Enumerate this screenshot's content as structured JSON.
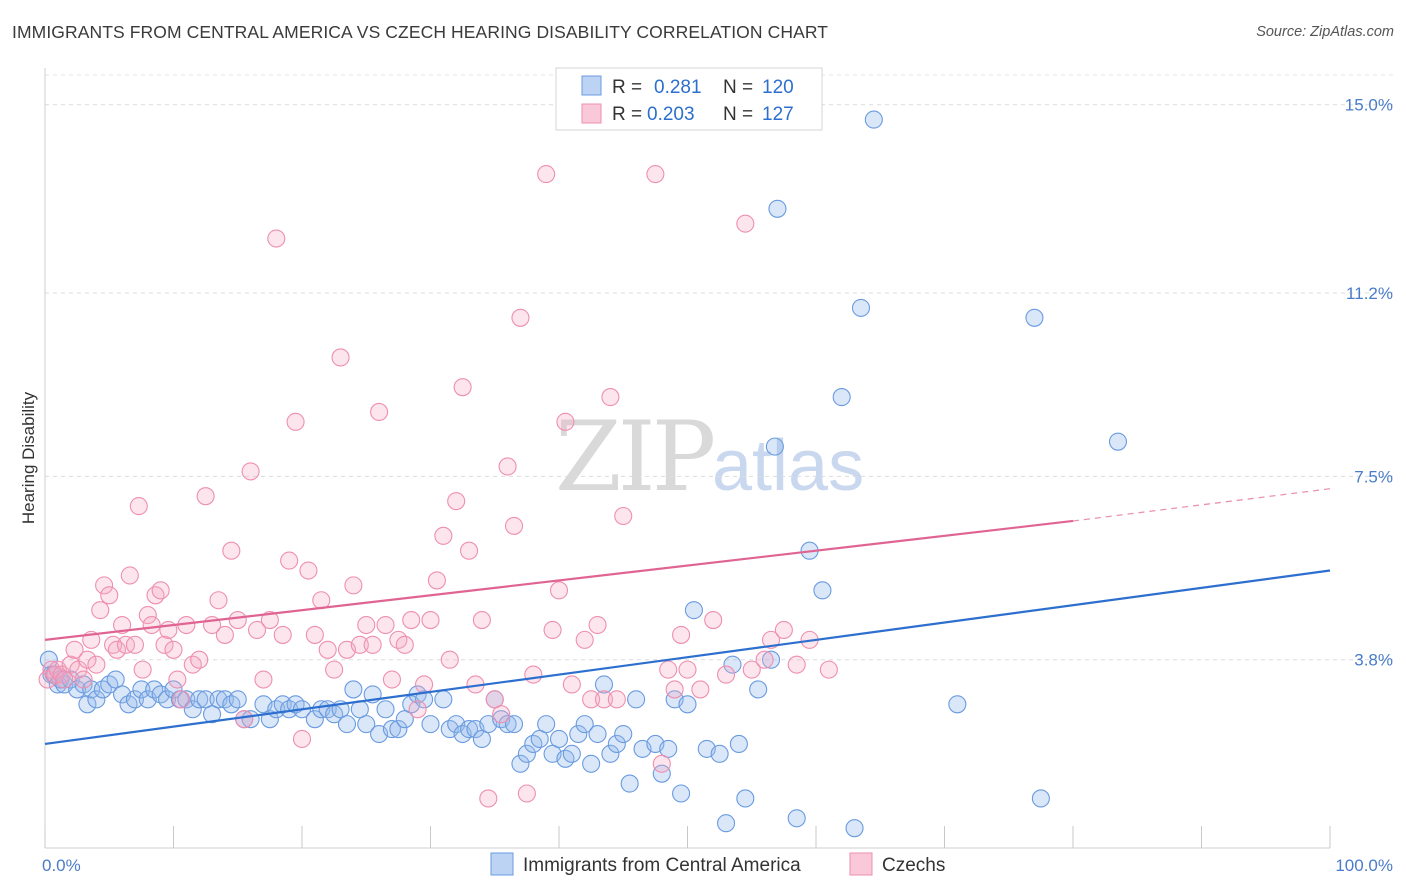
{
  "title": "IMMIGRANTS FROM CENTRAL AMERICA VS CZECH HEARING DISABILITY CORRELATION CHART",
  "source": "Source: ZipAtlas.com",
  "watermark": {
    "zip": "ZIP",
    "atlas": "atlas"
  },
  "colors": {
    "blue": "#6a9be0",
    "blue_line": "#2d6fcf",
    "pink": "#ee8fb0",
    "pink_line": "#e06492",
    "tick": "#4a7cc9"
  },
  "legend": {
    "r_label": "R =",
    "n_label": "N =",
    "rows": [
      {
        "r": "0.281",
        "n": "120"
      },
      {
        "r": "0.203",
        "n": "127"
      }
    ]
  },
  "bottom_legend": [
    "Immigrants from Central America",
    "Czechs"
  ],
  "chart_data": {
    "type": "scatter",
    "xlabel": "",
    "ylabel": "Hearing Disability",
    "xlim": [
      0,
      100
    ],
    "ylim": [
      0,
      15.6
    ],
    "x_tick_labels": [
      "0.0%",
      "100.0%"
    ],
    "y_ticks": [
      3.8,
      7.5,
      11.2,
      15.0
    ],
    "y_tick_labels": [
      "3.8%",
      "7.5%",
      "11.2%",
      "15.0%"
    ],
    "grid": true,
    "series": [
      {
        "name": "Immigrants from Central America",
        "color": "#6a9be0",
        "trend": {
          "x": [
            0,
            100
          ],
          "y": [
            2.1,
            5.6
          ]
        },
        "points": [
          [
            0.3,
            3.8
          ],
          [
            0.5,
            3.5
          ],
          [
            0.7,
            3.5
          ],
          [
            1.0,
            3.3
          ],
          [
            1.2,
            3.4
          ],
          [
            1.5,
            3.3
          ],
          [
            2.0,
            3.4
          ],
          [
            2.5,
            3.2
          ],
          [
            3.0,
            3.3
          ],
          [
            3.3,
            2.9
          ],
          [
            3.6,
            3.2
          ],
          [
            4.0,
            3.0
          ],
          [
            4.5,
            3.2
          ],
          [
            5.0,
            3.3
          ],
          [
            5.5,
            3.4
          ],
          [
            6.0,
            3.1
          ],
          [
            6.5,
            2.9
          ],
          [
            7.0,
            3.0
          ],
          [
            7.5,
            3.2
          ],
          [
            8.0,
            3.0
          ],
          [
            8.5,
            3.2
          ],
          [
            9.0,
            3.1
          ],
          [
            9.5,
            3.0
          ],
          [
            10.0,
            3.2
          ],
          [
            10.5,
            3.0
          ],
          [
            11.0,
            3.0
          ],
          [
            11.5,
            2.8
          ],
          [
            12.0,
            3.0
          ],
          [
            12.5,
            3.0
          ],
          [
            13.0,
            2.7
          ],
          [
            13.5,
            3.0
          ],
          [
            14.0,
            3.0
          ],
          [
            14.5,
            2.9
          ],
          [
            15.0,
            3.0
          ],
          [
            15.5,
            2.6
          ],
          [
            16.0,
            2.6
          ],
          [
            17.0,
            2.9
          ],
          [
            17.5,
            2.6
          ],
          [
            18.0,
            2.8
          ],
          [
            18.5,
            2.9
          ],
          [
            19.0,
            2.8
          ],
          [
            19.5,
            2.9
          ],
          [
            20.0,
            2.8
          ],
          [
            21.0,
            2.6
          ],
          [
            21.5,
            2.8
          ],
          [
            22.0,
            2.8
          ],
          [
            22.5,
            2.7
          ],
          [
            23.0,
            2.8
          ],
          [
            23.5,
            2.5
          ],
          [
            24.0,
            3.2
          ],
          [
            24.5,
            2.8
          ],
          [
            25.0,
            2.5
          ],
          [
            25.5,
            3.1
          ],
          [
            26.0,
            2.3
          ],
          [
            26.5,
            2.8
          ],
          [
            27.0,
            2.4
          ],
          [
            27.5,
            2.4
          ],
          [
            28.0,
            2.6
          ],
          [
            28.5,
            2.9
          ],
          [
            29.0,
            3.1
          ],
          [
            29.5,
            3.0
          ],
          [
            30.0,
            2.5
          ],
          [
            31.0,
            3.0
          ],
          [
            31.5,
            2.4
          ],
          [
            32.0,
            2.5
          ],
          [
            32.5,
            2.3
          ],
          [
            33.0,
            2.4
          ],
          [
            33.5,
            2.4
          ],
          [
            34.0,
            2.2
          ],
          [
            34.5,
            2.5
          ],
          [
            35.0,
            3.0
          ],
          [
            35.5,
            2.6
          ],
          [
            36.0,
            2.5
          ],
          [
            36.5,
            2.5
          ],
          [
            37.0,
            1.7
          ],
          [
            37.5,
            1.9
          ],
          [
            38.0,
            2.1
          ],
          [
            38.5,
            2.2
          ],
          [
            39.0,
            2.5
          ],
          [
            39.5,
            1.9
          ],
          [
            40.0,
            2.2
          ],
          [
            40.5,
            1.8
          ],
          [
            41.0,
            1.9
          ],
          [
            41.5,
            2.3
          ],
          [
            42.0,
            2.5
          ],
          [
            42.5,
            1.7
          ],
          [
            43.0,
            2.3
          ],
          [
            43.5,
            3.3
          ],
          [
            44.0,
            1.9
          ],
          [
            44.5,
            2.1
          ],
          [
            45.0,
            2.3
          ],
          [
            45.5,
            1.3
          ],
          [
            46.0,
            3.0
          ],
          [
            46.5,
            2.0
          ],
          [
            47.5,
            2.1
          ],
          [
            48.0,
            1.5
          ],
          [
            48.5,
            2.0
          ],
          [
            49.0,
            3.0
          ],
          [
            49.5,
            1.1
          ],
          [
            50.0,
            2.9
          ],
          [
            50.5,
            4.8
          ],
          [
            51.5,
            2.0
          ],
          [
            52.5,
            1.9
          ],
          [
            53.0,
            0.5
          ],
          [
            53.5,
            3.7
          ],
          [
            54.0,
            2.1
          ],
          [
            54.5,
            1.0
          ],
          [
            55.5,
            3.2
          ],
          [
            56.5,
            3.8
          ],
          [
            56.8,
            8.1
          ],
          [
            58.5,
            0.6
          ],
          [
            57.0,
            12.9
          ],
          [
            59.5,
            6.0
          ],
          [
            60.5,
            5.2
          ],
          [
            62.0,
            9.1
          ],
          [
            63.0,
            0.4
          ],
          [
            63.5,
            10.9
          ],
          [
            64.5,
            14.7
          ],
          [
            71.0,
            2.9
          ],
          [
            77.0,
            10.7
          ],
          [
            77.5,
            1.0
          ],
          [
            83.5,
            8.2
          ]
        ]
      },
      {
        "name": "Czechs",
        "color": "#ee8fb0",
        "trend": {
          "x": [
            0,
            80
          ],
          "y": [
            4.2,
            6.6
          ]
        },
        "trend_dashed": {
          "x": [
            80,
            100
          ],
          "y": [
            6.6,
            7.25
          ]
        },
        "points": [
          [
            0.2,
            3.4
          ],
          [
            0.5,
            3.6
          ],
          [
            0.8,
            3.5
          ],
          [
            1.0,
            3.6
          ],
          [
            1.3,
            3.5
          ],
          [
            1.5,
            3.4
          ],
          [
            2.0,
            3.7
          ],
          [
            2.3,
            4.0
          ],
          [
            2.6,
            3.6
          ],
          [
            3.0,
            3.4
          ],
          [
            3.3,
            3.8
          ],
          [
            3.6,
            4.2
          ],
          [
            4.0,
            3.7
          ],
          [
            4.3,
            4.8
          ],
          [
            4.6,
            5.3
          ],
          [
            5.0,
            5.1
          ],
          [
            5.3,
            4.1
          ],
          [
            5.6,
            4.0
          ],
          [
            6.0,
            4.5
          ],
          [
            6.3,
            4.1
          ],
          [
            6.6,
            5.5
          ],
          [
            7.0,
            4.1
          ],
          [
            7.3,
            6.9
          ],
          [
            7.6,
            3.6
          ],
          [
            8.0,
            4.7
          ],
          [
            8.3,
            4.5
          ],
          [
            8.6,
            5.1
          ],
          [
            9.0,
            5.2
          ],
          [
            9.3,
            4.1
          ],
          [
            9.6,
            4.4
          ],
          [
            10.0,
            4.0
          ],
          [
            10.3,
            3.4
          ],
          [
            10.6,
            3.0
          ],
          [
            11.0,
            4.5
          ],
          [
            11.5,
            3.7
          ],
          [
            12.0,
            3.8
          ],
          [
            12.5,
            7.1
          ],
          [
            13.0,
            4.5
          ],
          [
            13.5,
            5.0
          ],
          [
            14.0,
            4.3
          ],
          [
            14.5,
            6.0
          ],
          [
            15.0,
            4.6
          ],
          [
            15.5,
            2.6
          ],
          [
            16.0,
            7.6
          ],
          [
            16.5,
            4.4
          ],
          [
            17.0,
            3.4
          ],
          [
            17.5,
            4.6
          ],
          [
            18.0,
            12.3
          ],
          [
            18.5,
            4.3
          ],
          [
            19.0,
            5.8
          ],
          [
            19.5,
            8.6
          ],
          [
            20.0,
            2.2
          ],
          [
            20.5,
            5.6
          ],
          [
            21.0,
            4.3
          ],
          [
            21.5,
            5.0
          ],
          [
            22.0,
            4.0
          ],
          [
            22.5,
            3.6
          ],
          [
            23.0,
            9.9
          ],
          [
            23.5,
            4.0
          ],
          [
            24.0,
            5.3
          ],
          [
            24.5,
            4.1
          ],
          [
            25.0,
            4.5
          ],
          [
            25.5,
            4.1
          ],
          [
            26.0,
            8.8
          ],
          [
            26.5,
            4.5
          ],
          [
            27.0,
            3.4
          ],
          [
            27.5,
            4.2
          ],
          [
            28.0,
            4.1
          ],
          [
            28.5,
            4.6
          ],
          [
            29.0,
            2.8
          ],
          [
            29.5,
            3.3
          ],
          [
            30.0,
            4.6
          ],
          [
            30.5,
            5.4
          ],
          [
            31.0,
            6.3
          ],
          [
            31.5,
            3.8
          ],
          [
            32.0,
            7.0
          ],
          [
            32.5,
            9.3
          ],
          [
            33.0,
            6.0
          ],
          [
            33.5,
            3.3
          ],
          [
            34.0,
            4.6
          ],
          [
            34.5,
            1.0
          ],
          [
            35.0,
            3.0
          ],
          [
            35.5,
            2.7
          ],
          [
            36.0,
            7.7
          ],
          [
            36.5,
            6.5
          ],
          [
            37.0,
            10.7
          ],
          [
            37.5,
            1.1
          ],
          [
            38.0,
            3.5
          ],
          [
            39.0,
            13.6
          ],
          [
            39.5,
            4.4
          ],
          [
            40.0,
            5.2
          ],
          [
            40.5,
            8.6
          ],
          [
            41.0,
            3.3
          ],
          [
            42.0,
            4.2
          ],
          [
            42.5,
            3.0
          ],
          [
            43.0,
            4.5
          ],
          [
            43.5,
            3.0
          ],
          [
            44.0,
            9.1
          ],
          [
            44.5,
            3.0
          ],
          [
            45.0,
            6.7
          ],
          [
            47.5,
            13.6
          ],
          [
            48.0,
            1.7
          ],
          [
            48.5,
            3.6
          ],
          [
            49.0,
            3.2
          ],
          [
            49.5,
            4.3
          ],
          [
            50.0,
            3.6
          ],
          [
            51.0,
            3.2
          ],
          [
            52.0,
            4.6
          ],
          [
            53.0,
            3.5
          ],
          [
            54.5,
            12.6
          ],
          [
            55.0,
            3.6
          ],
          [
            56.0,
            3.8
          ],
          [
            56.5,
            4.2
          ],
          [
            57.5,
            4.4
          ],
          [
            58.5,
            3.7
          ],
          [
            59.5,
            4.2
          ],
          [
            61.0,
            3.6
          ]
        ]
      }
    ]
  }
}
